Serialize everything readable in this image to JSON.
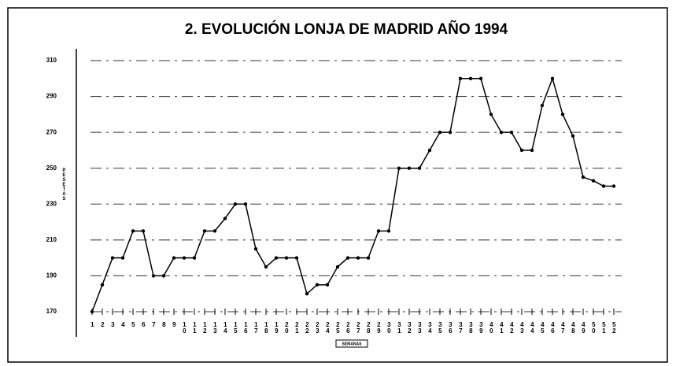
{
  "chart_data": {
    "type": "line",
    "title": "2. EVOLUCIÓN LONJA DE MADRID AÑO 1994",
    "y_label": "PESETAS",
    "x_label": "SEMANAS",
    "categories": [
      "1",
      "2",
      "3",
      "4",
      "5",
      "6",
      "7",
      "8",
      "9",
      "10",
      "11",
      "12",
      "13",
      "14",
      "15",
      "16",
      "17",
      "18",
      "19",
      "20",
      "21",
      "22",
      "23",
      "24",
      "25",
      "26",
      "27",
      "28",
      "29",
      "30",
      "31",
      "32",
      "33",
      "34",
      "35",
      "36",
      "37",
      "38",
      "39",
      "40",
      "41",
      "42",
      "43",
      "44",
      "45",
      "46",
      "47",
      "48",
      "49",
      "50",
      "51",
      "52"
    ],
    "series": [
      {
        "name": "Lonja de Madrid",
        "color": "#000000",
        "values": [
          170,
          185,
          200,
          200,
          215,
          215,
          190,
          190,
          200,
          200,
          200,
          215,
          215,
          222,
          230,
          230,
          205,
          195,
          200,
          200,
          200,
          180,
          185,
          185,
          195,
          200,
          200,
          200,
          215,
          215,
          250,
          250,
          250,
          260,
          270,
          270,
          300,
          300,
          300,
          280,
          270,
          270,
          260,
          260,
          285,
          300,
          280,
          268,
          245,
          243,
          240,
          240
        ]
      }
    ],
    "ylim": [
      170,
      310
    ],
    "yticks": [
      170,
      190,
      210,
      230,
      250,
      270,
      290,
      310
    ],
    "grid": true
  }
}
